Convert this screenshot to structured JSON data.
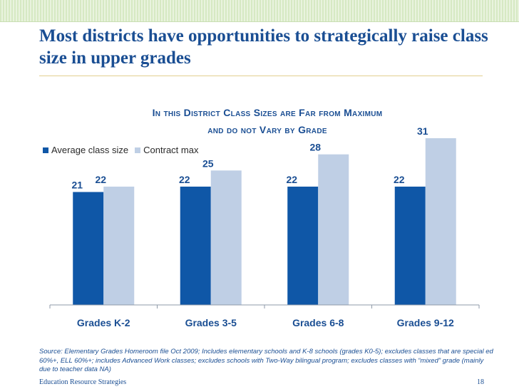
{
  "slide": {
    "title": "Most districts have opportunities to strategically raise class size in upper grades",
    "source_note": "Source: Elementary Grades Homeroom file Oct 2009; Includes elementary schools and K-8 schools (grades K0-5); excludes classes that are special ed 60%+, ELL 60%+; includes Advanced Work classes; excludes schools with Two-Way bilingual program; excludes classes with “mixed” grade (mainly due to teacher data NA)",
    "footer_org": "Education Resource Strategies",
    "page_number": "18"
  },
  "chart_data": {
    "type": "bar",
    "title_line1": "In this District Class Sizes are Far from Maximum",
    "title_line2": "and do not Vary by Grade",
    "categories": [
      "Grades K-2",
      "Grades 3-5",
      "Grades 6-8",
      "Grades 9-12"
    ],
    "series": [
      {
        "name": "Average class size",
        "values": [
          21,
          22,
          22,
          22
        ],
        "color": "#0f57a7"
      },
      {
        "name": "Contract max",
        "values": [
          22,
          25,
          28,
          31
        ],
        "color": "#bfcfe5"
      }
    ],
    "ylim": [
      0,
      31
    ],
    "xlabel": "",
    "ylabel": "",
    "legend_position": "top-left",
    "grid": false
  }
}
